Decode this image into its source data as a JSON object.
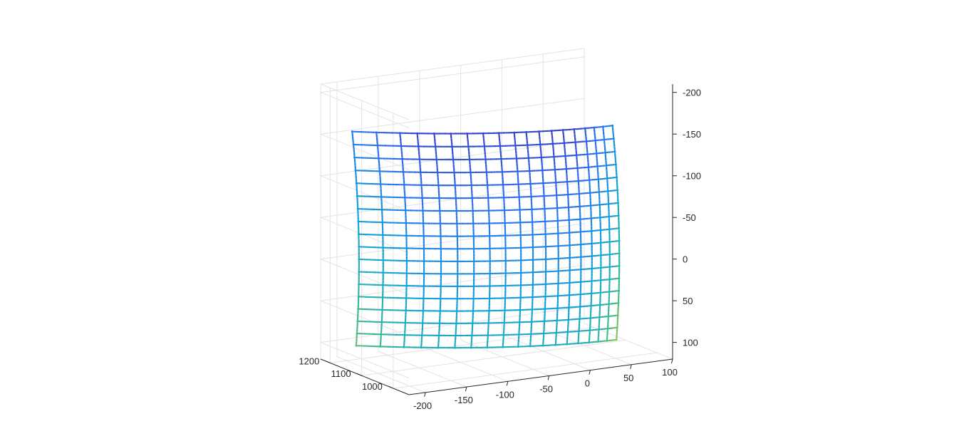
{
  "chart_data": {
    "type": "scatter",
    "subtype": "3d-point-mesh",
    "title": "",
    "xlabel": "",
    "ylabel": "",
    "zlabel": "",
    "grid": true,
    "colormap": "parula",
    "x_axis": {
      "ticks": [
        -200,
        -150,
        -100,
        -50,
        0,
        50,
        100
      ],
      "tick_labels": [
        "-200",
        "-150",
        "-100",
        "-50",
        "0",
        "50",
        "100"
      ],
      "range": [
        -220,
        100
      ]
    },
    "y_axis": {
      "ticks": [
        1000,
        1100,
        1200
      ],
      "tick_labels": [
        "1000",
        "1100",
        "1200"
      ],
      "range": [
        950,
        1230
      ]
    },
    "z_axis": {
      "ticks": [
        -200,
        -150,
        -100,
        -50,
        0,
        50,
        100
      ],
      "tick_labels": [
        "-200",
        "-150",
        "-100",
        "-50",
        "0",
        "50",
        "100"
      ],
      "range": [
        -210,
        120
      ],
      "direction": "reverse"
    },
    "surface": {
      "x_columns": [
        -195,
        -175,
        -155,
        -140,
        -125,
        -110,
        -95,
        -80,
        -65,
        -50,
        -38,
        -25,
        -12,
        0,
        12,
        24,
        34,
        44,
        55
      ],
      "z_rows": [
        -155,
        -140,
        -125,
        -110,
        -95,
        -80,
        -65,
        -50,
        -35,
        -20,
        -5,
        10,
        25,
        40,
        55,
        70,
        85,
        100
      ],
      "depth_model": "depth = 1000 + 180 * (1 - (x + 200) / 280) ^ 2 + 0.0009 * z ^ 2",
      "depth_range": [
        1000,
        1200
      ]
    },
    "colors": {
      "low": "#3e26a8",
      "mid_low": "#2f6cf0",
      "mid": "#11a5d8",
      "mid_high": "#3dbb8f",
      "high": "#b8c93a"
    }
  }
}
